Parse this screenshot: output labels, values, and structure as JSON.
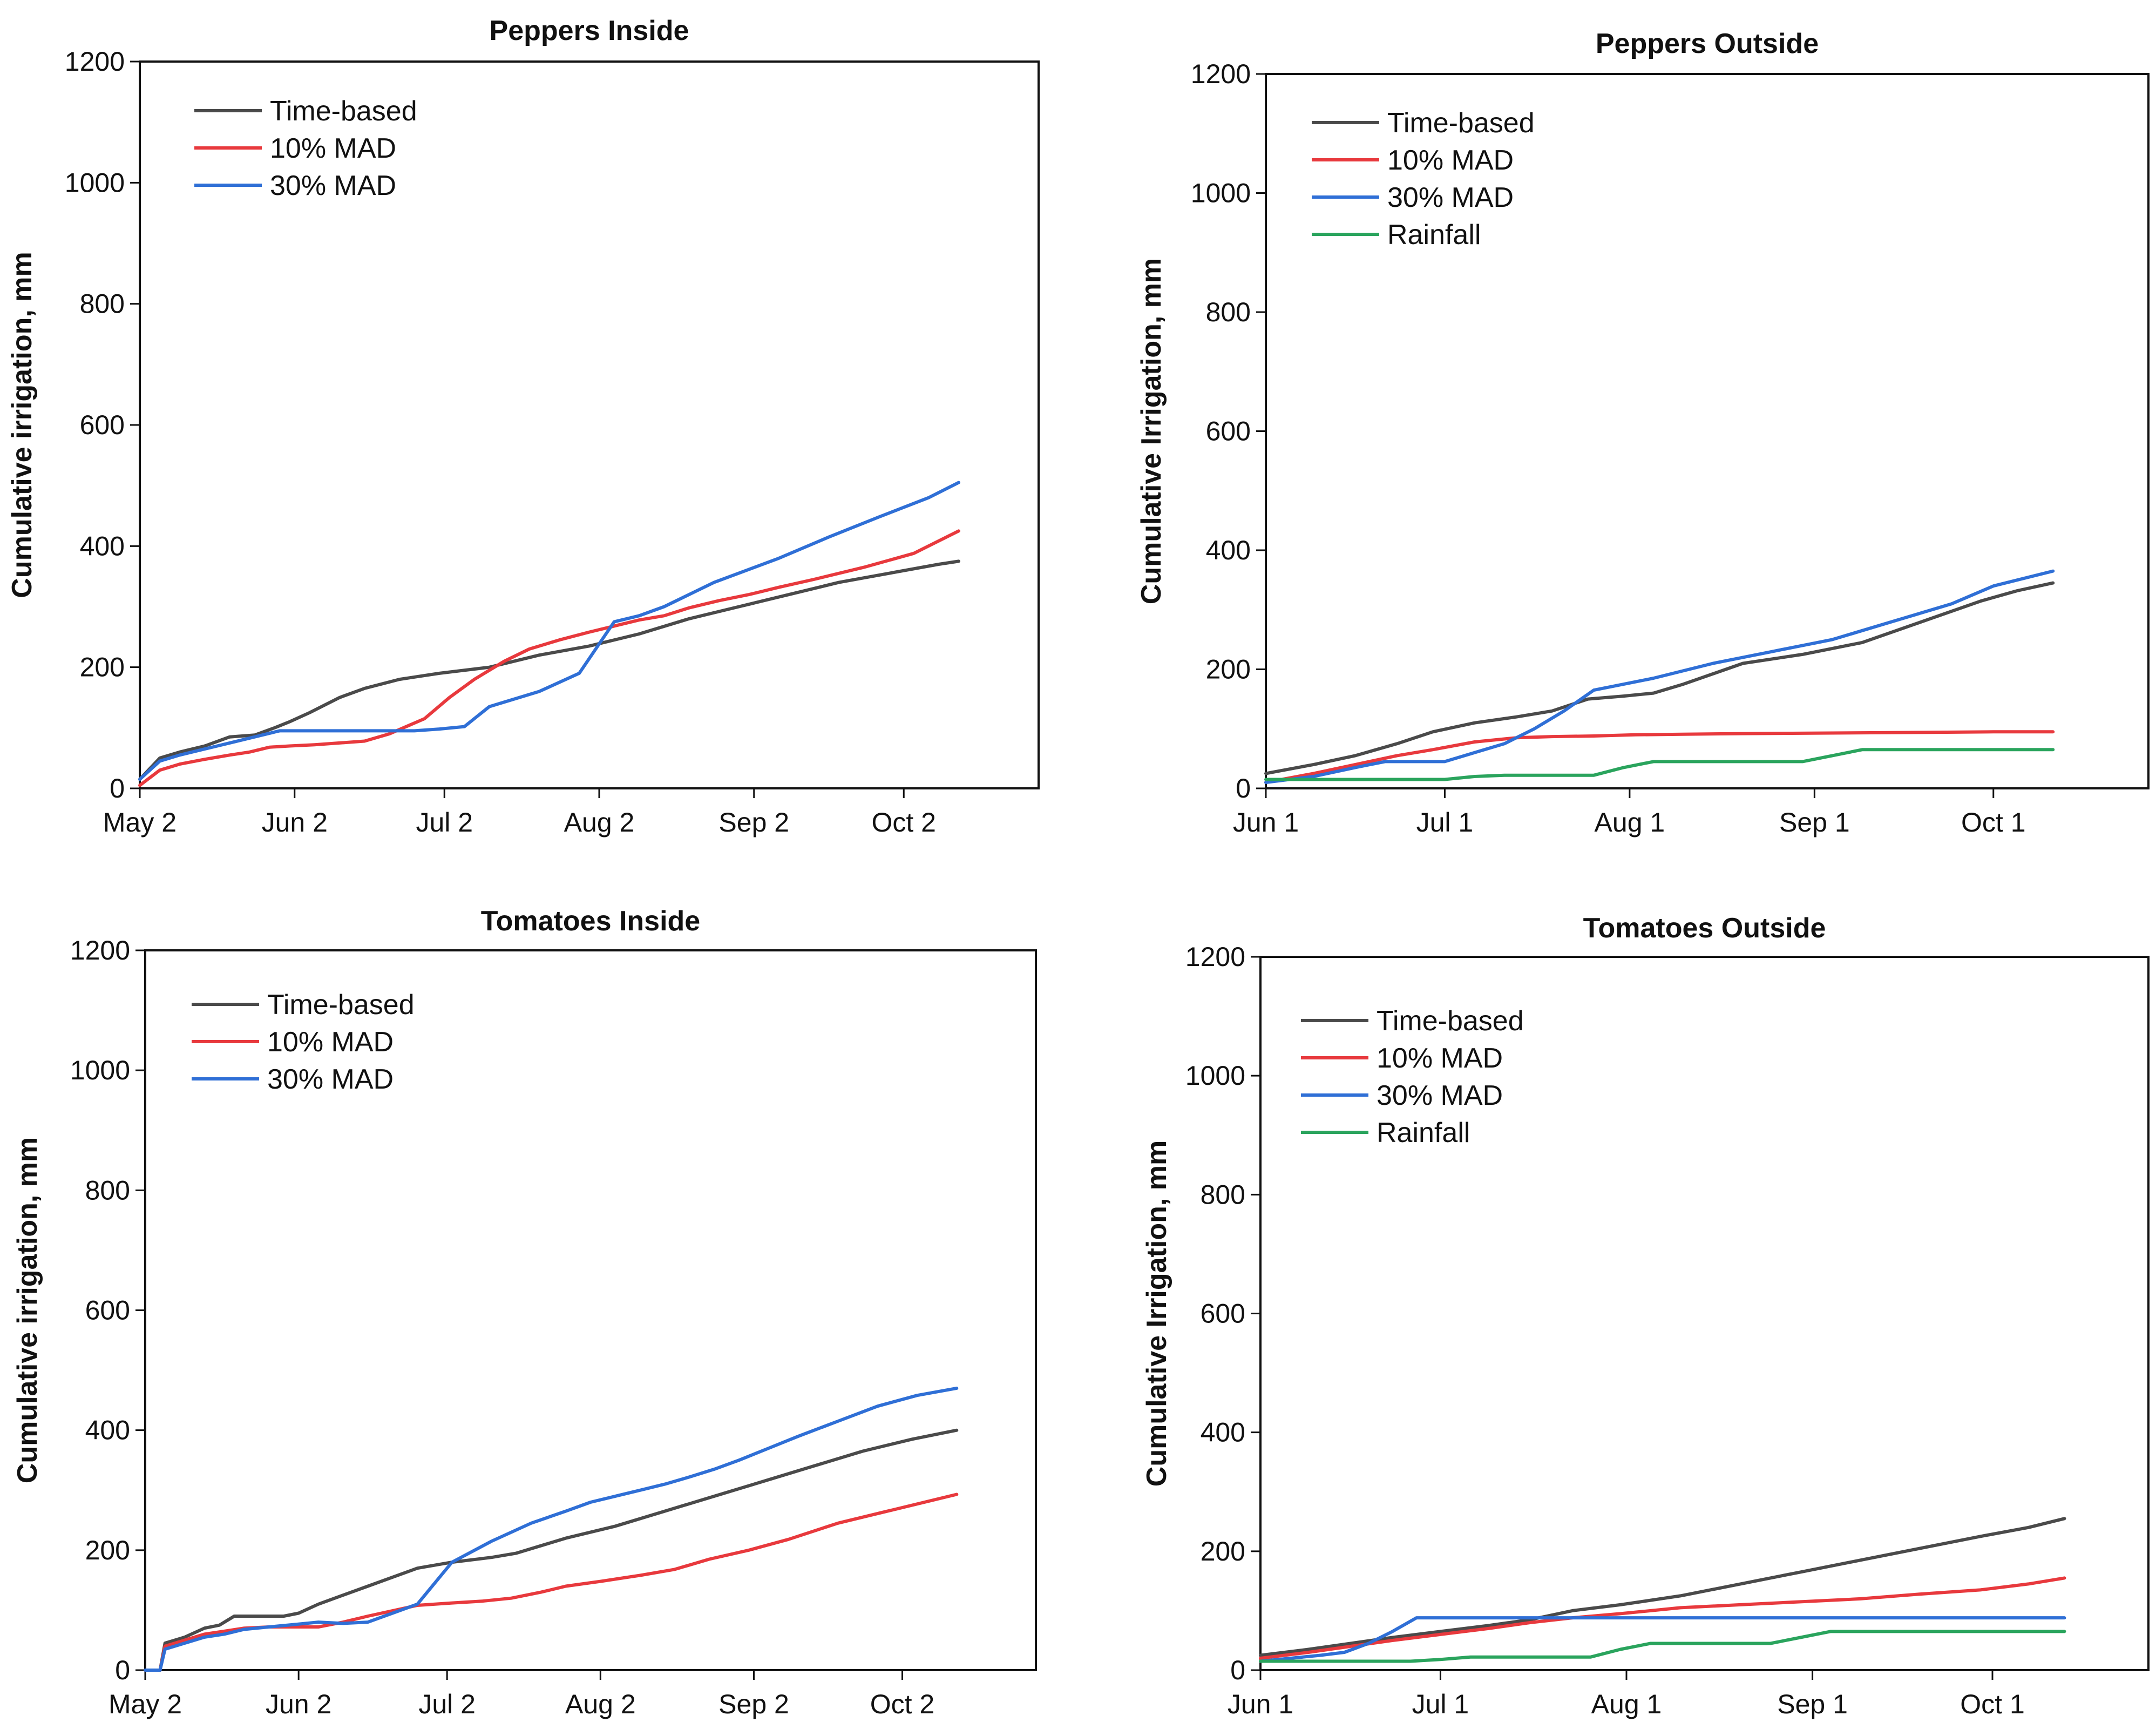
{
  "colors": {
    "Time-based": "#4a4a4a",
    "10% MAD": "#e8393d",
    "30% MAD": "#2f6fd6",
    "Rainfall": "#2aa45d"
  },
  "chart_data": [
    {
      "type": "line",
      "title": "Peppers Inside",
      "xlabel": "",
      "ylabel": "Cumulative irrigation, mm",
      "ylim": [
        0,
        1200
      ],
      "yticks": [
        0,
        200,
        400,
        600,
        800,
        1000,
        1200
      ],
      "xlim": [
        0,
        180
      ],
      "xticks": [
        {
          "label": "May 2",
          "day": 0
        },
        {
          "label": "Jun 2",
          "day": 31
        },
        {
          "label": "Jul 2",
          "day": 61
        },
        {
          "label": "Aug 2",
          "day": 92
        },
        {
          "label": "Sep 2",
          "day": 123
        },
        {
          "label": "Oct 2",
          "day": 153
        }
      ],
      "legend_position": "top-left",
      "series": [
        {
          "name": "Time-based",
          "x": [
            0,
            4,
            8,
            13,
            18,
            23,
            27,
            30,
            34,
            40,
            45,
            52,
            60,
            70,
            80,
            90,
            100,
            110,
            120,
            130,
            140,
            150,
            160,
            164
          ],
          "y": [
            15,
            50,
            60,
            70,
            85,
            88,
            100,
            110,
            125,
            150,
            165,
            180,
            190,
            200,
            220,
            235,
            255,
            280,
            300,
            320,
            340,
            355,
            370,
            375
          ]
        },
        {
          "name": "10% MAD",
          "x": [
            0,
            4,
            8,
            13,
            18,
            22,
            26,
            30,
            35,
            40,
            45,
            50,
            57,
            62,
            67,
            73,
            78,
            84,
            90,
            95,
            100,
            105,
            110,
            116,
            122,
            128,
            135,
            145,
            155,
            164
          ],
          "y": [
            5,
            30,
            40,
            48,
            55,
            60,
            68,
            70,
            72,
            75,
            78,
            90,
            115,
            150,
            180,
            210,
            230,
            245,
            258,
            268,
            278,
            285,
            298,
            310,
            320,
            332,
            345,
            365,
            388,
            425
          ]
        },
        {
          "name": "30% MAD",
          "x": [
            0,
            4,
            8,
            13,
            18,
            23,
            28,
            35,
            45,
            55,
            60,
            65,
            70,
            80,
            88,
            95,
            100,
            105,
            110,
            115,
            128,
            138,
            148,
            158,
            164
          ],
          "y": [
            15,
            45,
            55,
            65,
            75,
            85,
            95,
            95,
            95,
            95,
            98,
            102,
            135,
            160,
            190,
            275,
            285,
            300,
            320,
            340,
            380,
            415,
            448,
            480,
            505
          ]
        }
      ]
    },
    {
      "type": "line",
      "title": "Peppers Outside",
      "xlabel": "",
      "ylabel": "Cumulative Irrigation, mm",
      "ylim": [
        0,
        1200
      ],
      "yticks": [
        0,
        200,
        400,
        600,
        800,
        1000,
        1200
      ],
      "xlim": [
        0,
        148
      ],
      "xticks": [
        {
          "label": "Jun 1",
          "day": 0
        },
        {
          "label": "Jul 1",
          "day": 30
        },
        {
          "label": "Aug 1",
          "day": 61
        },
        {
          "label": "Sep 1",
          "day": 92
        },
        {
          "label": "Oct 1",
          "day": 122
        }
      ],
      "legend_position": "top-left",
      "series": [
        {
          "name": "Time-based",
          "x": [
            0,
            8,
            15,
            22,
            28,
            35,
            42,
            48,
            54,
            60,
            65,
            70,
            80,
            90,
            95,
            100,
            110,
            120,
            126,
            132
          ],
          "y": [
            25,
            40,
            55,
            75,
            95,
            110,
            120,
            130,
            150,
            155,
            160,
            175,
            210,
            225,
            235,
            245,
            280,
            315,
            332,
            345
          ]
        },
        {
          "name": "10% MAD",
          "x": [
            0,
            8,
            15,
            22,
            28,
            35,
            42,
            48,
            55,
            62,
            70,
            80,
            95,
            110,
            122,
            132
          ],
          "y": [
            10,
            25,
            40,
            55,
            65,
            78,
            85,
            87,
            88,
            90,
            91,
            92,
            93,
            94,
            95,
            95
          ]
        },
        {
          "name": "30% MAD",
          "x": [
            0,
            8,
            15,
            20,
            25,
            30,
            35,
            40,
            45,
            50,
            55,
            65,
            75,
            85,
            95,
            105,
            115,
            122,
            132
          ],
          "y": [
            10,
            20,
            35,
            45,
            45,
            45,
            60,
            75,
            100,
            130,
            165,
            185,
            210,
            230,
            250,
            280,
            310,
            340,
            365
          ]
        },
        {
          "name": "Rainfall",
          "x": [
            0,
            10,
            20,
            30,
            35,
            40,
            50,
            55,
            60,
            65,
            70,
            90,
            95,
            100,
            132
          ],
          "y": [
            15,
            15,
            15,
            15,
            20,
            22,
            22,
            22,
            35,
            45,
            45,
            45,
            55,
            65,
            65
          ]
        }
      ]
    },
    {
      "type": "line",
      "title": "Tomatoes Inside",
      "xlabel": "",
      "ylabel": "Cumulative irrigation, mm",
      "ylim": [
        0,
        1200
      ],
      "yticks": [
        0,
        200,
        400,
        600,
        800,
        1000,
        1200
      ],
      "xlim": [
        0,
        180
      ],
      "xticks": [
        {
          "label": "May 2",
          "day": 0
        },
        {
          "label": "Jun 2",
          "day": 31
        },
        {
          "label": "Jul 2",
          "day": 61
        },
        {
          "label": "Aug 2",
          "day": 92
        },
        {
          "label": "Sep 2",
          "day": 123
        },
        {
          "label": "Oct 2",
          "day": 153
        }
      ],
      "legend_position": "top-left",
      "series": [
        {
          "name": "Time-based",
          "x": [
            0,
            3,
            4,
            8,
            12,
            15,
            18,
            23,
            28,
            31,
            35,
            40,
            45,
            55,
            62,
            70,
            75,
            85,
            95,
            105,
            115,
            125,
            135,
            145,
            155,
            164
          ],
          "y": [
            0,
            0,
            45,
            55,
            70,
            75,
            90,
            90,
            90,
            95,
            110,
            125,
            140,
            170,
            180,
            188,
            195,
            220,
            240,
            265,
            290,
            315,
            340,
            365,
            385,
            400
          ]
        },
        {
          "name": "10% MAD",
          "x": [
            0,
            3,
            4,
            8,
            12,
            16,
            20,
            25,
            30,
            35,
            40,
            45,
            55,
            62,
            68,
            74,
            80,
            85,
            92,
            100,
            107,
            114,
            122,
            130,
            140,
            150,
            164
          ],
          "y": [
            0,
            0,
            40,
            50,
            60,
            65,
            70,
            72,
            72,
            72,
            80,
            90,
            108,
            112,
            115,
            120,
            130,
            140,
            148,
            158,
            168,
            185,
            200,
            218,
            245,
            265,
            293
          ]
        },
        {
          "name": "30% MAD",
          "x": [
            0,
            3,
            4,
            8,
            12,
            16,
            20,
            25,
            30,
            35,
            40,
            45,
            55,
            62,
            70,
            78,
            85,
            90,
            95,
            100,
            105,
            110,
            115,
            120,
            126,
            132,
            140,
            148,
            156,
            164
          ],
          "y": [
            0,
            0,
            35,
            45,
            55,
            60,
            68,
            72,
            76,
            80,
            78,
            80,
            110,
            180,
            215,
            245,
            265,
            280,
            290,
            300,
            310,
            322,
            335,
            350,
            370,
            390,
            415,
            440,
            458,
            470
          ]
        }
      ]
    },
    {
      "type": "line",
      "title": "Tomatoes Outside",
      "xlabel": "",
      "ylabel": "Cumulative Irrigation, mm",
      "ylim": [
        0,
        1200
      ],
      "yticks": [
        0,
        200,
        400,
        600,
        800,
        1000,
        1200
      ],
      "xlim": [
        0,
        148
      ],
      "xticks": [
        {
          "label": "Jun 1",
          "day": 0
        },
        {
          "label": "Jul 1",
          "day": 30
        },
        {
          "label": "Aug 1",
          "day": 61
        },
        {
          "label": "Sep 1",
          "day": 92
        },
        {
          "label": "Oct 1",
          "day": 122
        }
      ],
      "legend_position": "top-left",
      "series": [
        {
          "name": "Time-based",
          "x": [
            0,
            8,
            15,
            22,
            30,
            38,
            45,
            52,
            60,
            70,
            80,
            90,
            100,
            110,
            120,
            128,
            134
          ],
          "y": [
            25,
            35,
            45,
            55,
            65,
            75,
            85,
            100,
            110,
            125,
            145,
            165,
            185,
            205,
            225,
            240,
            255
          ]
        },
        {
          "name": "10% MAD",
          "x": [
            0,
            8,
            15,
            22,
            30,
            38,
            45,
            52,
            60,
            70,
            80,
            90,
            100,
            110,
            120,
            128,
            134
          ],
          "y": [
            20,
            30,
            40,
            50,
            60,
            70,
            80,
            88,
            95,
            105,
            110,
            115,
            120,
            128,
            135,
            145,
            155
          ]
        },
        {
          "name": "30% MAD",
          "x": [
            0,
            5,
            10,
            14,
            18,
            22,
            26,
            30,
            40,
            50,
            60,
            80,
            100,
            120,
            134
          ],
          "y": [
            15,
            20,
            25,
            30,
            45,
            65,
            88,
            88,
            88,
            88,
            88,
            88,
            88,
            88,
            88
          ]
        },
        {
          "name": "Rainfall",
          "x": [
            0,
            10,
            20,
            25,
            30,
            35,
            40,
            50,
            55,
            60,
            65,
            85,
            90,
            95,
            134
          ],
          "y": [
            15,
            15,
            15,
            15,
            18,
            22,
            22,
            22,
            22,
            35,
            45,
            45,
            55,
            65,
            65
          ]
        }
      ]
    }
  ]
}
